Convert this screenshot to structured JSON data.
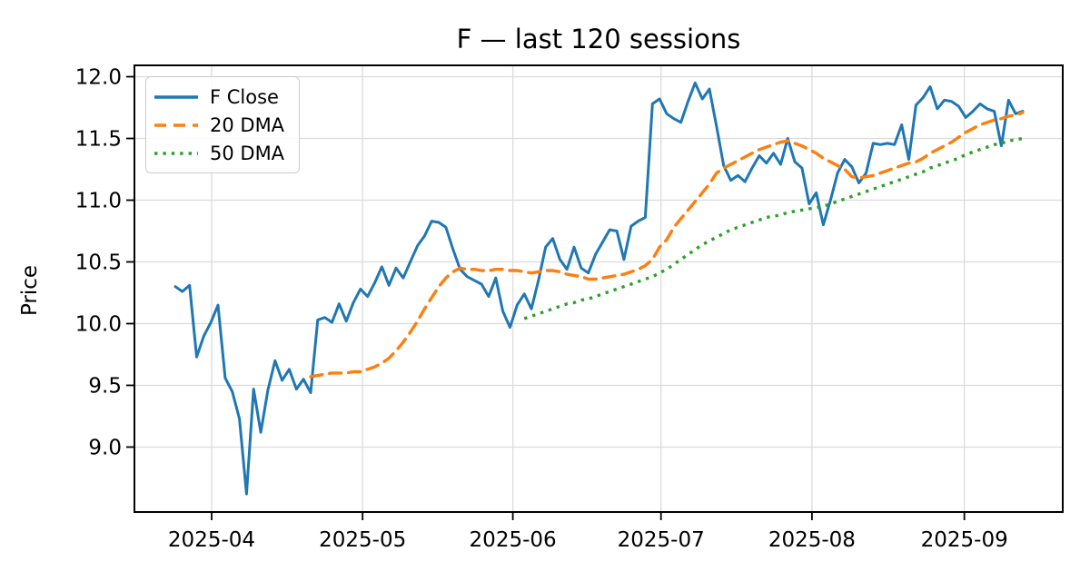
{
  "title": "F — last 120 sessions",
  "ylabel": "Price",
  "accent_colors": {
    "close": "#1f77b4",
    "dma20": "#ff7f0e",
    "dma50": "#2ca02c",
    "grid": "#dcdcdc",
    "frame": "#000000"
  },
  "legend": [
    {
      "label": "F Close",
      "color": "#1f77b4",
      "style": "solid"
    },
    {
      "label": "20 DMA",
      "color": "#ff7f0e",
      "style": "dashed"
    },
    {
      "label": "50 DMA",
      "color": "#2ca02c",
      "style": "dotted"
    }
  ],
  "chart_data": {
    "type": "line",
    "title": "F — last 120 sessions",
    "xlabel": "",
    "ylabel": "Price",
    "x_unit": "session_index",
    "n_sessions": 120,
    "grid": true,
    "legend_position": "upper left",
    "ylim": [
      8.474,
      12.092
    ],
    "yticks": [
      {
        "label": "9.0",
        "value": 9.0
      },
      {
        "label": "9.5",
        "value": 9.5
      },
      {
        "label": "10.0",
        "value": 10.0
      },
      {
        "label": "10.5",
        "value": 10.5
      },
      {
        "label": "11.0",
        "value": 11.0
      },
      {
        "label": "11.5",
        "value": 11.5
      },
      {
        "label": "12.0",
        "value": 12.0
      }
    ],
    "xticks": [
      {
        "label": "2025-04",
        "session": 5.1
      },
      {
        "label": "2025-05",
        "session": 26.3
      },
      {
        "label": "2025-06",
        "session": 47.4
      },
      {
        "label": "2025-07",
        "session": 68.2
      },
      {
        "label": "2025-08",
        "session": 89.4
      },
      {
        "label": "2025-09",
        "session": 110.8
      }
    ],
    "series": [
      {
        "name": "F Close",
        "color": "#1f77b4",
        "style": "solid",
        "values": [
          10.3,
          10.26,
          10.31,
          9.73,
          9.9,
          10.01,
          10.15,
          9.56,
          9.45,
          9.23,
          8.62,
          9.47,
          9.12,
          9.46,
          9.7,
          9.54,
          9.63,
          9.47,
          9.55,
          9.44,
          10.03,
          10.05,
          10.01,
          10.16,
          10.02,
          10.17,
          10.28,
          10.22,
          10.33,
          10.46,
          10.31,
          10.45,
          10.37,
          10.5,
          10.63,
          10.71,
          10.83,
          10.82,
          10.78,
          10.6,
          10.44,
          10.38,
          10.35,
          10.32,
          10.22,
          10.37,
          10.1,
          9.97,
          10.15,
          10.24,
          10.12,
          10.35,
          10.62,
          10.69,
          10.52,
          10.44,
          10.62,
          10.45,
          10.41,
          10.56,
          10.66,
          10.76,
          10.75,
          10.52,
          10.79,
          10.83,
          10.86,
          11.78,
          11.82,
          11.7,
          11.66,
          11.63,
          11.8,
          11.95,
          11.82,
          11.9,
          11.6,
          11.28,
          11.16,
          11.2,
          11.15,
          11.26,
          11.36,
          11.3,
          11.38,
          11.29,
          11.5,
          11.31,
          11.26,
          10.97,
          11.06,
          10.8,
          11.0,
          11.22,
          11.33,
          11.27,
          11.14,
          11.22,
          11.46,
          11.45,
          11.46,
          11.45,
          11.61,
          11.33,
          11.77,
          11.83,
          11.92,
          11.74,
          11.81,
          11.8,
          11.76,
          11.67,
          11.72,
          11.78,
          11.74,
          11.72,
          11.44,
          11.81,
          11.7,
          11.72
        ]
      },
      {
        "name": "20 DMA",
        "color": "#ff7f0e",
        "style": "dashed",
        "window": 20,
        "values": [
          null,
          null,
          null,
          null,
          null,
          null,
          null,
          null,
          null,
          null,
          null,
          null,
          null,
          null,
          null,
          null,
          null,
          null,
          null,
          9.57,
          9.58,
          9.59,
          9.6,
          9.6,
          9.6,
          9.61,
          9.61,
          9.63,
          9.65,
          9.68,
          9.72,
          9.78,
          9.85,
          9.93,
          10.02,
          10.12,
          10.21,
          10.3,
          10.37,
          10.42,
          10.45,
          10.44,
          10.44,
          10.43,
          10.43,
          10.44,
          10.44,
          10.43,
          10.43,
          10.42,
          10.41,
          10.42,
          10.43,
          10.43,
          10.42,
          10.4,
          10.39,
          10.38,
          10.36,
          10.36,
          10.37,
          10.38,
          10.39,
          10.4,
          10.42,
          10.44,
          10.47,
          10.52,
          10.62,
          10.68,
          10.78,
          10.85,
          10.92,
          10.99,
          11.06,
          11.13,
          11.22,
          11.26,
          11.29,
          11.32,
          11.35,
          11.38,
          11.41,
          11.43,
          11.45,
          11.47,
          11.48,
          11.46,
          11.44,
          11.41,
          11.38,
          11.34,
          11.31,
          11.28,
          11.25,
          11.19,
          11.18,
          11.19,
          11.2,
          11.22,
          11.24,
          11.26,
          11.28,
          11.3,
          11.31,
          11.34,
          11.38,
          11.41,
          11.44,
          11.47,
          11.51,
          11.55,
          11.58,
          11.61,
          11.63,
          11.65,
          11.66,
          11.68,
          11.69,
          11.71
        ]
      },
      {
        "name": "50 DMA",
        "color": "#2ca02c",
        "style": "dotted",
        "window": 50,
        "values": [
          null,
          null,
          null,
          null,
          null,
          null,
          null,
          null,
          null,
          null,
          null,
          null,
          null,
          null,
          null,
          null,
          null,
          null,
          null,
          null,
          null,
          null,
          null,
          null,
          null,
          null,
          null,
          null,
          null,
          null,
          null,
          null,
          null,
          null,
          null,
          null,
          null,
          null,
          null,
          null,
          null,
          null,
          null,
          null,
          null,
          null,
          null,
          null,
          null,
          10.04,
          10.06,
          10.08,
          10.1,
          10.12,
          10.14,
          10.16,
          10.17,
          10.19,
          10.2,
          10.22,
          10.24,
          10.26,
          10.28,
          10.3,
          10.32,
          10.34,
          10.36,
          10.38,
          10.41,
          10.44,
          10.48,
          10.52,
          10.56,
          10.6,
          10.64,
          10.67,
          10.7,
          10.73,
          10.76,
          10.78,
          10.8,
          10.82,
          10.84,
          10.86,
          10.87,
          10.88,
          10.9,
          10.91,
          10.92,
          10.93,
          10.94,
          10.95,
          10.97,
          10.99,
          11.01,
          11.03,
          11.05,
          11.07,
          11.09,
          11.11,
          11.13,
          11.15,
          11.17,
          11.19,
          11.21,
          11.23,
          11.26,
          11.28,
          11.3,
          11.32,
          11.34,
          11.37,
          11.39,
          11.41,
          11.43,
          11.45,
          11.46,
          11.48,
          11.49,
          11.5
        ]
      }
    ]
  }
}
